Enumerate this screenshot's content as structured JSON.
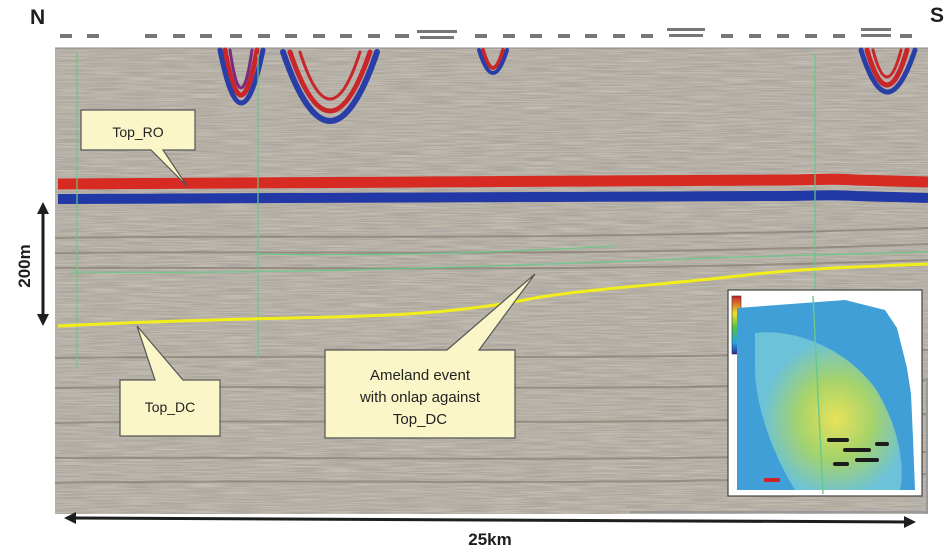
{
  "orientation": {
    "left": "N",
    "right": "S"
  },
  "callouts": {
    "top_ro": "Top_RO",
    "top_dc": "Top_DC",
    "ameland_line1": "Ameland event",
    "ameland_line2": "with onlap against",
    "ameland_line3": "Top_DC"
  },
  "scale": {
    "vertical": "200m",
    "horizontal": "25km"
  },
  "colors": {
    "horizon_top_ro_red": "#d62a22",
    "horizon_top_ro_blue": "#2138a6",
    "horizon_top_dc": "#f2ee1a",
    "callout_fill": "#fbf6c7",
    "well_line": "#67c98a"
  }
}
